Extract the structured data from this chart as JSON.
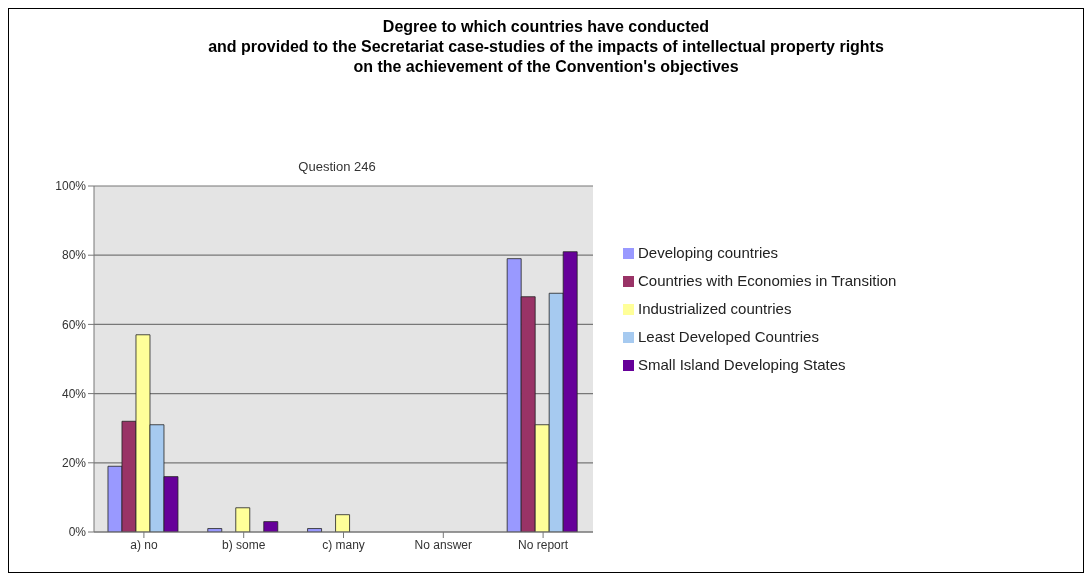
{
  "chart_data": {
    "type": "bar",
    "title": "Degree to which countries have conducted\nand provided to the Secretariat case-studies of the impacts of intellectual property rights\non the achievement of the Convention's objectives",
    "subtitle": "Question 246",
    "categories": [
      "a) no",
      "b) some",
      "c) many",
      "No answer",
      "No report"
    ],
    "series": [
      {
        "name": "Developing countries",
        "color": "#9999ff",
        "values": [
          19,
          1,
          1,
          0,
          79
        ]
      },
      {
        "name": "Countries with Economies in Transition",
        "color": "#993366",
        "values": [
          32,
          0,
          0,
          0,
          68
        ]
      },
      {
        "name": "Industrialized countries",
        "color": "#ffff99",
        "values": [
          57,
          7,
          5,
          0,
          31
        ]
      },
      {
        "name": "Least Developed Countries",
        "color": "#a6caf0",
        "values": [
          31,
          0,
          0,
          0,
          69
        ]
      },
      {
        "name": "Small Island Developing States",
        "color": "#660099",
        "values": [
          16,
          3,
          0,
          0,
          81
        ]
      }
    ],
    "ylim": [
      0,
      100
    ],
    "yticks": [
      {
        "value": 0,
        "label": "0%"
      },
      {
        "value": 20,
        "label": "20%"
      },
      {
        "value": 40,
        "label": "40%"
      },
      {
        "value": 60,
        "label": "60%"
      },
      {
        "value": 80,
        "label": "80%"
      },
      {
        "value": 100,
        "label": "100%"
      }
    ],
    "grid": "y",
    "legend": "right"
  }
}
